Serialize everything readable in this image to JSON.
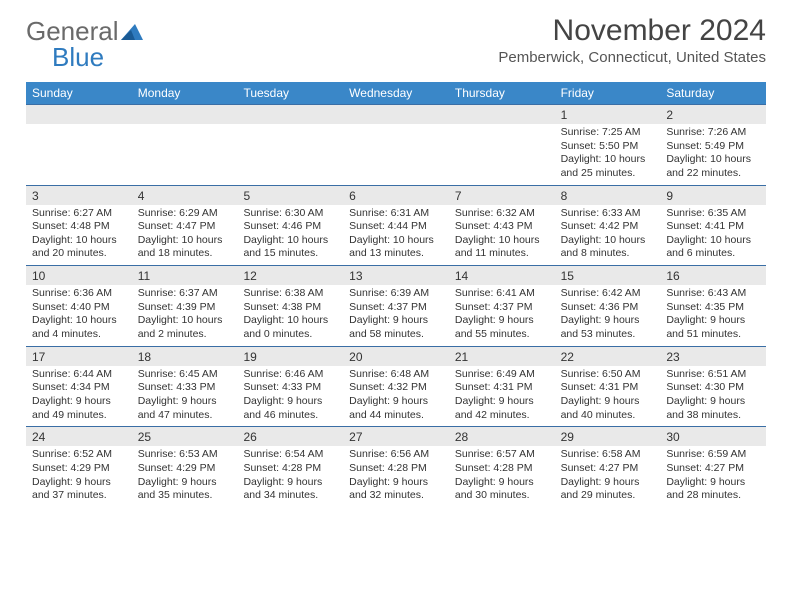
{
  "brand": {
    "word1": "General",
    "word2": "Blue",
    "text_color": "#6a6a6a",
    "accent_color": "#2f7bbf"
  },
  "title": "November 2024",
  "location": "Pemberwick, Connecticut, United States",
  "header_bg": "#3a87c8",
  "week_border": "#3a6ea5",
  "daynum_bg": "#e9e9e9",
  "dow": [
    "Sunday",
    "Monday",
    "Tuesday",
    "Wednesday",
    "Thursday",
    "Friday",
    "Saturday"
  ],
  "weeks": [
    [
      {
        "n": "",
        "sunrise": "",
        "sunset": "",
        "daylight": ""
      },
      {
        "n": "",
        "sunrise": "",
        "sunset": "",
        "daylight": ""
      },
      {
        "n": "",
        "sunrise": "",
        "sunset": "",
        "daylight": ""
      },
      {
        "n": "",
        "sunrise": "",
        "sunset": "",
        "daylight": ""
      },
      {
        "n": "",
        "sunrise": "",
        "sunset": "",
        "daylight": ""
      },
      {
        "n": "1",
        "sunrise": "Sunrise: 7:25 AM",
        "sunset": "Sunset: 5:50 PM",
        "daylight": "Daylight: 10 hours and 25 minutes."
      },
      {
        "n": "2",
        "sunrise": "Sunrise: 7:26 AM",
        "sunset": "Sunset: 5:49 PM",
        "daylight": "Daylight: 10 hours and 22 minutes."
      }
    ],
    [
      {
        "n": "3",
        "sunrise": "Sunrise: 6:27 AM",
        "sunset": "Sunset: 4:48 PM",
        "daylight": "Daylight: 10 hours and 20 minutes."
      },
      {
        "n": "4",
        "sunrise": "Sunrise: 6:29 AM",
        "sunset": "Sunset: 4:47 PM",
        "daylight": "Daylight: 10 hours and 18 minutes."
      },
      {
        "n": "5",
        "sunrise": "Sunrise: 6:30 AM",
        "sunset": "Sunset: 4:46 PM",
        "daylight": "Daylight: 10 hours and 15 minutes."
      },
      {
        "n": "6",
        "sunrise": "Sunrise: 6:31 AM",
        "sunset": "Sunset: 4:44 PM",
        "daylight": "Daylight: 10 hours and 13 minutes."
      },
      {
        "n": "7",
        "sunrise": "Sunrise: 6:32 AM",
        "sunset": "Sunset: 4:43 PM",
        "daylight": "Daylight: 10 hours and 11 minutes."
      },
      {
        "n": "8",
        "sunrise": "Sunrise: 6:33 AM",
        "sunset": "Sunset: 4:42 PM",
        "daylight": "Daylight: 10 hours and 8 minutes."
      },
      {
        "n": "9",
        "sunrise": "Sunrise: 6:35 AM",
        "sunset": "Sunset: 4:41 PM",
        "daylight": "Daylight: 10 hours and 6 minutes."
      }
    ],
    [
      {
        "n": "10",
        "sunrise": "Sunrise: 6:36 AM",
        "sunset": "Sunset: 4:40 PM",
        "daylight": "Daylight: 10 hours and 4 minutes."
      },
      {
        "n": "11",
        "sunrise": "Sunrise: 6:37 AM",
        "sunset": "Sunset: 4:39 PM",
        "daylight": "Daylight: 10 hours and 2 minutes."
      },
      {
        "n": "12",
        "sunrise": "Sunrise: 6:38 AM",
        "sunset": "Sunset: 4:38 PM",
        "daylight": "Daylight: 10 hours and 0 minutes."
      },
      {
        "n": "13",
        "sunrise": "Sunrise: 6:39 AM",
        "sunset": "Sunset: 4:37 PM",
        "daylight": "Daylight: 9 hours and 58 minutes."
      },
      {
        "n": "14",
        "sunrise": "Sunrise: 6:41 AM",
        "sunset": "Sunset: 4:37 PM",
        "daylight": "Daylight: 9 hours and 55 minutes."
      },
      {
        "n": "15",
        "sunrise": "Sunrise: 6:42 AM",
        "sunset": "Sunset: 4:36 PM",
        "daylight": "Daylight: 9 hours and 53 minutes."
      },
      {
        "n": "16",
        "sunrise": "Sunrise: 6:43 AM",
        "sunset": "Sunset: 4:35 PM",
        "daylight": "Daylight: 9 hours and 51 minutes."
      }
    ],
    [
      {
        "n": "17",
        "sunrise": "Sunrise: 6:44 AM",
        "sunset": "Sunset: 4:34 PM",
        "daylight": "Daylight: 9 hours and 49 minutes."
      },
      {
        "n": "18",
        "sunrise": "Sunrise: 6:45 AM",
        "sunset": "Sunset: 4:33 PM",
        "daylight": "Daylight: 9 hours and 47 minutes."
      },
      {
        "n": "19",
        "sunrise": "Sunrise: 6:46 AM",
        "sunset": "Sunset: 4:33 PM",
        "daylight": "Daylight: 9 hours and 46 minutes."
      },
      {
        "n": "20",
        "sunrise": "Sunrise: 6:48 AM",
        "sunset": "Sunset: 4:32 PM",
        "daylight": "Daylight: 9 hours and 44 minutes."
      },
      {
        "n": "21",
        "sunrise": "Sunrise: 6:49 AM",
        "sunset": "Sunset: 4:31 PM",
        "daylight": "Daylight: 9 hours and 42 minutes."
      },
      {
        "n": "22",
        "sunrise": "Sunrise: 6:50 AM",
        "sunset": "Sunset: 4:31 PM",
        "daylight": "Daylight: 9 hours and 40 minutes."
      },
      {
        "n": "23",
        "sunrise": "Sunrise: 6:51 AM",
        "sunset": "Sunset: 4:30 PM",
        "daylight": "Daylight: 9 hours and 38 minutes."
      }
    ],
    [
      {
        "n": "24",
        "sunrise": "Sunrise: 6:52 AM",
        "sunset": "Sunset: 4:29 PM",
        "daylight": "Daylight: 9 hours and 37 minutes."
      },
      {
        "n": "25",
        "sunrise": "Sunrise: 6:53 AM",
        "sunset": "Sunset: 4:29 PM",
        "daylight": "Daylight: 9 hours and 35 minutes."
      },
      {
        "n": "26",
        "sunrise": "Sunrise: 6:54 AM",
        "sunset": "Sunset: 4:28 PM",
        "daylight": "Daylight: 9 hours and 34 minutes."
      },
      {
        "n": "27",
        "sunrise": "Sunrise: 6:56 AM",
        "sunset": "Sunset: 4:28 PM",
        "daylight": "Daylight: 9 hours and 32 minutes."
      },
      {
        "n": "28",
        "sunrise": "Sunrise: 6:57 AM",
        "sunset": "Sunset: 4:28 PM",
        "daylight": "Daylight: 9 hours and 30 minutes."
      },
      {
        "n": "29",
        "sunrise": "Sunrise: 6:58 AM",
        "sunset": "Sunset: 4:27 PM",
        "daylight": "Daylight: 9 hours and 29 minutes."
      },
      {
        "n": "30",
        "sunrise": "Sunrise: 6:59 AM",
        "sunset": "Sunset: 4:27 PM",
        "daylight": "Daylight: 9 hours and 28 minutes."
      }
    ]
  ]
}
